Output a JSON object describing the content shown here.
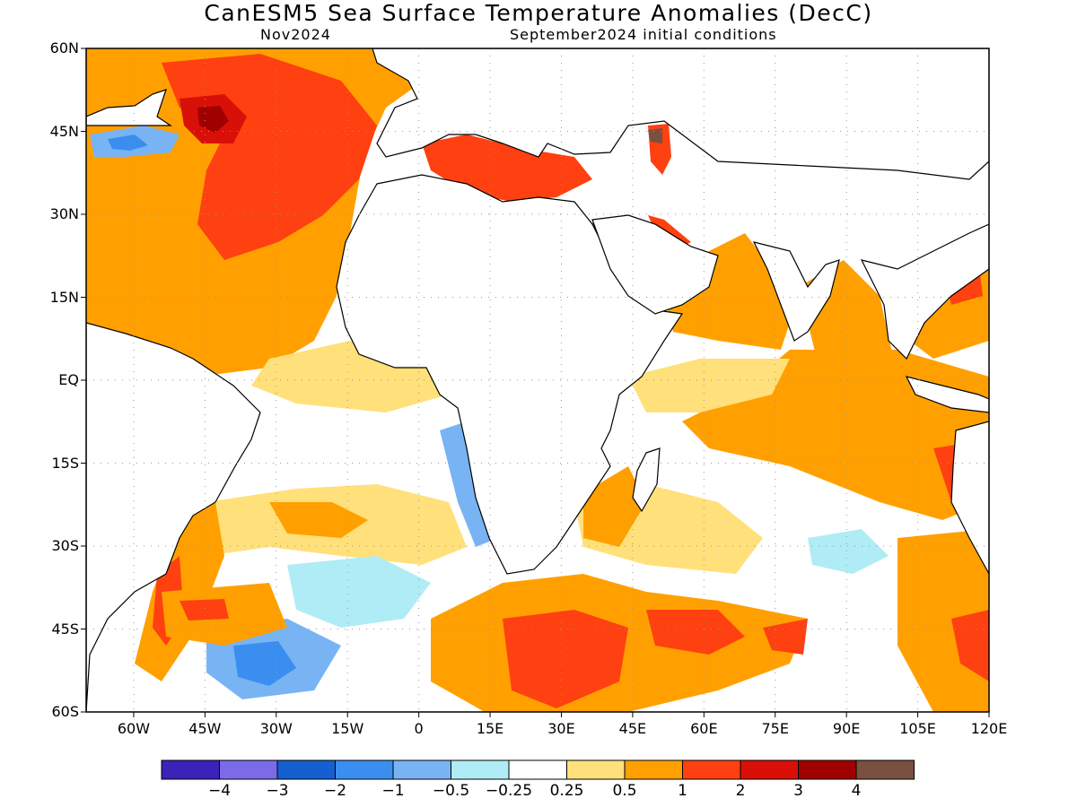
{
  "header": {
    "title": "CanESM5 Sea Surface Temperature Anomalies (DecC)",
    "valid_month": "Nov2024",
    "initial_conditions": "September2024 initial conditions"
  },
  "axes": {
    "lat_ticks": [
      {
        "value": 60,
        "label": "60N"
      },
      {
        "value": 45,
        "label": "45N"
      },
      {
        "value": 30,
        "label": "30N"
      },
      {
        "value": 15,
        "label": "15N"
      },
      {
        "value": 0,
        "label": "EQ"
      },
      {
        "value": -15,
        "label": "15S"
      },
      {
        "value": -30,
        "label": "30S"
      },
      {
        "value": -45,
        "label": "45S"
      },
      {
        "value": -60,
        "label": "60S"
      }
    ],
    "lon_ticks": [
      {
        "value": -60,
        "label": "60W"
      },
      {
        "value": -45,
        "label": "45W"
      },
      {
        "value": -30,
        "label": "30W"
      },
      {
        "value": -15,
        "label": "15W"
      },
      {
        "value": 0,
        "label": "0"
      },
      {
        "value": 15,
        "label": "15E"
      },
      {
        "value": 30,
        "label": "30E"
      },
      {
        "value": 45,
        "label": "45E"
      },
      {
        "value": 60,
        "label": "60E"
      },
      {
        "value": 75,
        "label": "75E"
      },
      {
        "value": 90,
        "label": "90E"
      },
      {
        "value": 105,
        "label": "105E"
      },
      {
        "value": 120,
        "label": "120E"
      }
    ],
    "lon_range": [
      -70,
      120
    ],
    "lat_range": [
      -60,
      60
    ]
  },
  "colorbar": {
    "colors": [
      "#3b22b8",
      "#7b6be8",
      "#1560d0",
      "#3a8ef0",
      "#78b4f4",
      "#b0ecf6",
      "#ffffff",
      "#ffe07a",
      "#ffa000",
      "#ff4010",
      "#d81008",
      "#a00000",
      "#7a5040"
    ],
    "labels": [
      "−4",
      "−3",
      "−2",
      "−1",
      "−0.5",
      "−0.25",
      "0.25",
      "0.5",
      "1",
      "2",
      "3",
      "4"
    ]
  },
  "colors": {
    "land": "#ffffff",
    "coast": "#000000",
    "grid": "#999999"
  }
}
